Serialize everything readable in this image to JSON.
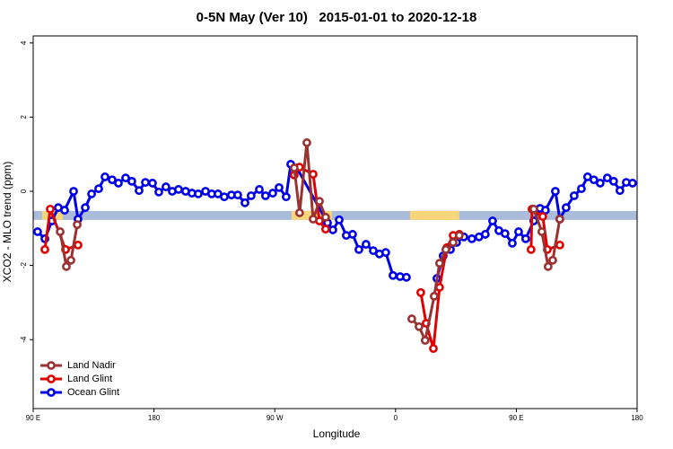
{
  "chart_data": {
    "type": "line",
    "title": "0-5N May (Ver 10)   2015-01-01 to 2020-12-18",
    "x_label": "Longitude",
    "y_label": "XCO2 - MLO trend (ppm)",
    "xlim": [
      90,
      540
    ],
    "xticks": [
      {
        "value": 90,
        "label": "90 E"
      },
      180,
      {
        "value": 270,
        "label": "90 W"
      },
      {
        "value": 360,
        "label": "0"
      },
      {
        "value": 450,
        "label": "90 E"
      },
      {
        "value": 540,
        "label": "180"
      }
    ],
    "ylim": [
      -5.86,
      4.19
    ],
    "yticks": [
      4,
      2,
      0,
      -2,
      -4
    ],
    "legend": "bottom-left",
    "band": {
      "y": -0.65,
      "color": "#a9bcd9",
      "highlight_color": "#f7d57a",
      "highlight_ranges": [
        [
          96.7,
          112
        ],
        [
          282.5,
          312.6
        ],
        [
          370.8,
          407.5
        ]
      ]
    },
    "series": [
      {
        "name": "Land Nadir",
        "color": "#9a3232",
        "x": [
          110.1,
          114.7,
          118.1,
          122.8,
          null,
          284.5,
          288.5,
          293.9,
          298.6,
          303.3,
          307.9,
          null,
          372.1,
          377.5,
          382.1,
          388.8,
          392.8,
          397.5,
          402.9,
          407.5,
          null,
          463.0,
          469.0,
          473.7,
          477.1,
          482.4
        ],
        "values": [
          -1.09,
          -2.03,
          -1.86,
          -0.9,
          null,
          0.63,
          -0.58,
          1.31,
          -0.75,
          -0.27,
          -0.7,
          null,
          -3.44,
          -3.65,
          -4.02,
          -2.83,
          -1.94,
          -1.57,
          -1.38,
          -1.19,
          null,
          -0.48,
          -1.09,
          -2.03,
          -1.86,
          -0.75
        ]
      },
      {
        "name": "Land Glint",
        "color": "#e00000",
        "x": [
          98.7,
          102.7,
          114.1,
          123.4,
          null,
          284.5,
          288.5,
          298.6,
          303.3,
          307.9,
          null,
          378.8,
          382.8,
          388.2,
          392.8,
          398.2,
          402.9,
          407.5,
          null,
          461.0,
          461.7,
          469.7,
          473.1,
          482.4
        ],
        "values": [
          -1.57,
          -0.48,
          -1.57,
          -1.45,
          null,
          0.44,
          0.65,
          0.46,
          -0.8,
          -1.02,
          null,
          -2.73,
          -3.56,
          -4.24,
          -2.59,
          -1.52,
          -1.19,
          -1.16,
          null,
          -1.57,
          -0.48,
          -0.68,
          -1.57,
          -1.45
        ]
      },
      {
        "name": "Ocean Glint",
        "color": "#0000e6",
        "x": [
          93.3,
          98.7,
          104.0,
          108.7,
          113.4,
          120.1,
          123.4,
          128.8,
          133.5,
          138.8,
          143.5,
          148.8,
          153.5,
          158.9,
          163.5,
          168.9,
          173.6,
          178.9,
          183.6,
          188.9,
          193.6,
          198.3,
          203.6,
          208.3,
          213.0,
          218.4,
          223.0,
          227.7,
          232.4,
          237.7,
          242.4,
          247.8,
          252.4,
          258.5,
          263.1,
          268.5,
          273.2,
          278.5,
          281.9,
          286.5,
          309.3,
          313.3,
          318.0,
          323.3,
          328.0,
          332.7,
          338.0,
          343.4,
          348.0,
          352.7,
          358.1,
          363.4,
          368.1,
          null,
          390.8,
          395.5,
          400.9,
          405.5,
          410.9,
          416.9,
          422.2,
          426.9,
          432.3,
          437.0,
          441.6,
          447.0,
          451.7,
          457.0,
          463.0,
          467.7,
          471.7,
          479.1,
          482.4,
          487.1,
          493.1,
          498.5,
          503.1,
          507.8,
          512.5,
          517.8,
          522.5,
          527.2,
          531.9,
          536.6
        ],
        "values": [
          -1.09,
          -1.28,
          -0.8,
          -0.44,
          -0.51,
          0.0,
          -0.75,
          -0.44,
          -0.07,
          0.07,
          0.39,
          0.31,
          0.22,
          0.36,
          0.27,
          0.02,
          0.24,
          0.22,
          -0.02,
          0.12,
          0.0,
          0.05,
          0.0,
          -0.05,
          -0.07,
          0.0,
          -0.07,
          -0.07,
          -0.15,
          -0.1,
          -0.1,
          -0.31,
          -0.12,
          0.05,
          -0.12,
          -0.05,
          0.1,
          -0.15,
          0.73,
          0.63,
          -0.85,
          -1.04,
          -0.77,
          -1.19,
          -1.16,
          -1.57,
          -1.43,
          -1.6,
          -1.69,
          -1.65,
          -2.27,
          -2.3,
          -2.32,
          null,
          -2.35,
          -1.74,
          -1.57,
          -1.38,
          -1.23,
          -1.28,
          -1.23,
          -1.16,
          -0.8,
          -1.06,
          -1.14,
          -1.4,
          -1.09,
          -1.28,
          -0.8,
          -0.46,
          -0.51,
          0.0,
          -0.75,
          -0.44,
          -0.12,
          0.07,
          0.39,
          0.31,
          0.22,
          0.36,
          0.27,
          0.02,
          0.24,
          0.22
        ]
      }
    ]
  }
}
